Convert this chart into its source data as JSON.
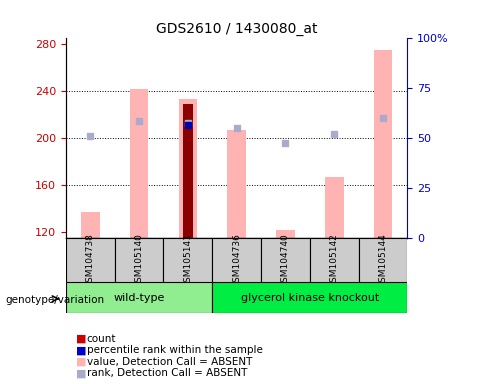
{
  "title": "GDS2610 / 1430080_at",
  "samples": [
    "GSM104738",
    "GSM105140",
    "GSM105141",
    "GSM104736",
    "GSM104740",
    "GSM105142",
    "GSM105144"
  ],
  "ylim_left": [
    115,
    285
  ],
  "ylim_right": [
    0,
    100
  ],
  "yticks_left": [
    120,
    160,
    200,
    240,
    280
  ],
  "yticks_right": [
    0,
    25,
    50,
    75,
    100
  ],
  "yticklabels_right": [
    "0",
    "25",
    "50",
    "75",
    "100%"
  ],
  "pink_bars": [
    137,
    242,
    233,
    207,
    122,
    167,
    275
  ],
  "blue_squares": [
    202,
    215,
    213,
    209,
    196,
    204,
    217
  ],
  "red_bar": [
    null,
    null,
    229,
    null,
    null,
    null,
    null
  ],
  "dark_blue_square": [
    null,
    null,
    211,
    null,
    null,
    null,
    null
  ],
  "colors": {
    "pink_bar": "#FFB3B3",
    "blue_square": "#AAAACC",
    "red_bar": "#8B0000",
    "dark_blue_square": "#0000AA",
    "group_wt": "#90EE90",
    "group_ko": "#00EE44",
    "label_left": "#CC0000",
    "label_right": "#0000CC",
    "bg_sample": "#CCCCCC"
  },
  "legend_colors": [
    "#CC0000",
    "#0000CC",
    "#FFB3B3",
    "#AAAACC"
  ],
  "legend_labels": [
    "count",
    "percentile rank within the sample",
    "value, Detection Call = ABSENT",
    "rank, Detection Call = ABSENT"
  ]
}
